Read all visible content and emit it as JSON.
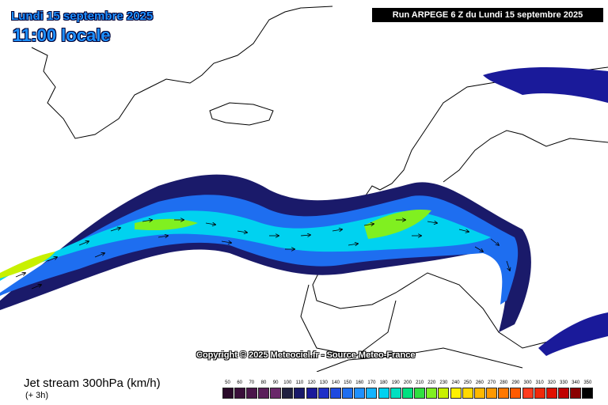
{
  "header": {
    "date": "Lundi 15 septembre 2025",
    "time": "11:00 locale",
    "run": "Run ARPEGE 6 Z du Lundi 15 septembre 2025"
  },
  "map": {
    "copyright": "Copyright © 2025 Meteociel.fr - Source Meteo-France",
    "colors": {
      "land_border": "#000000",
      "background": "#ffffff"
    }
  },
  "footer": {
    "title": "Jet stream 300hPa (km/h)",
    "subtitle": "(+ 3h)"
  },
  "legend": {
    "items": [
      {
        "label": "50",
        "color": "#2a0a2a"
      },
      {
        "label": "60",
        "color": "#3a0f3a"
      },
      {
        "label": "70",
        "color": "#4a164a"
      },
      {
        "label": "80",
        "color": "#5a1e5a"
      },
      {
        "label": "90",
        "color": "#6a286a"
      },
      {
        "label": "100",
        "color": "#202040"
      },
      {
        "label": "110",
        "color": "#1a1a6a"
      },
      {
        "label": "120",
        "color": "#1a1a9a"
      },
      {
        "label": "130",
        "color": "#1f2fc8"
      },
      {
        "label": "140",
        "color": "#1f4ae0"
      },
      {
        "label": "150",
        "color": "#1e6ef0"
      },
      {
        "label": "160",
        "color": "#1e90ff"
      },
      {
        "label": "170",
        "color": "#14b4ff"
      },
      {
        "label": "180",
        "color": "#00d2f0"
      },
      {
        "label": "190",
        "color": "#00e0c0"
      },
      {
        "label": "200",
        "color": "#00e080"
      },
      {
        "label": "210",
        "color": "#30e040"
      },
      {
        "label": "220",
        "color": "#80f020"
      },
      {
        "label": "230",
        "color": "#c8f000"
      },
      {
        "label": "240",
        "color": "#fff000"
      },
      {
        "label": "250",
        "color": "#ffd800"
      },
      {
        "label": "260",
        "color": "#ffb800"
      },
      {
        "label": "270",
        "color": "#ff9800"
      },
      {
        "label": "280",
        "color": "#ff7800"
      },
      {
        "label": "290",
        "color": "#ff5a00"
      },
      {
        "label": "300",
        "color": "#ff3c1e"
      },
      {
        "label": "310",
        "color": "#f0280a"
      },
      {
        "label": "320",
        "color": "#e01000"
      },
      {
        "label": "330",
        "color": "#c00000"
      },
      {
        "label": "340",
        "color": "#8a0000"
      },
      {
        "label": "350",
        "color": "#000000"
      }
    ]
  }
}
